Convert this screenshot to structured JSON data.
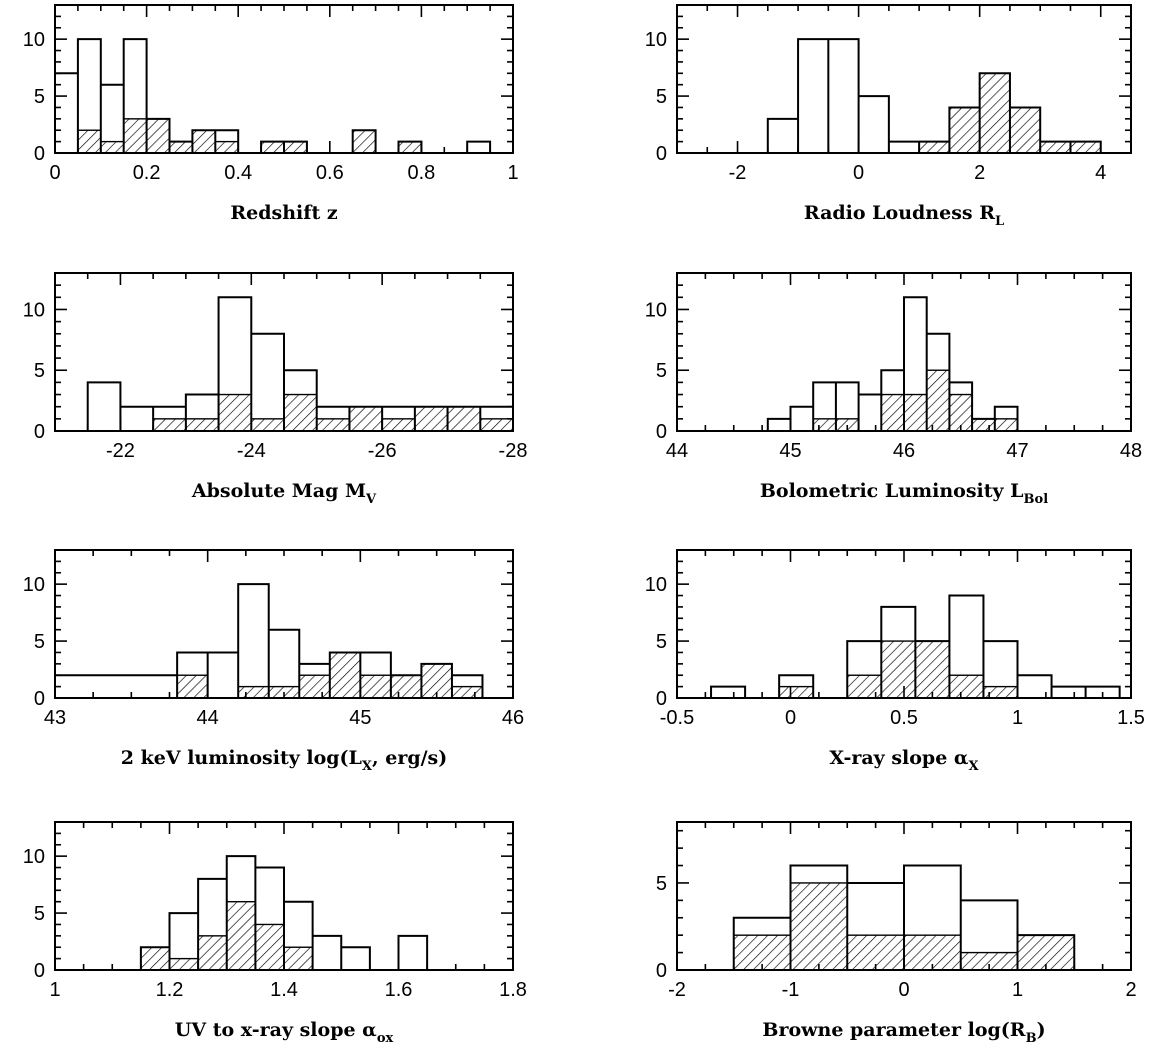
{
  "chart_data": [
    {
      "type": "bar",
      "xlabel": "Redshift z",
      "xlabel_main": "Redshift z",
      "xlabel_sub": "",
      "xlabel_tail": "",
      "xlim": [
        0,
        1
      ],
      "ylim": [
        0,
        13
      ],
      "xticks": [
        0,
        0.2,
        0.4,
        0.6,
        0.8,
        1
      ],
      "xtick_labels": [
        "0",
        "0.2",
        "0.4",
        "0.6",
        "0.8",
        "1"
      ],
      "yticks": [
        0,
        5,
        10
      ],
      "ytick_labels": [
        "0",
        "5",
        "10"
      ],
      "bin_edges": [
        0,
        0.05,
        0.1,
        0.15,
        0.2,
        0.25,
        0.3,
        0.35,
        0.4,
        0.45,
        0.5,
        0.55,
        0.6,
        0.65,
        0.7,
        0.75,
        0.8,
        0.85,
        0.9,
        0.95,
        1.0
      ],
      "series": [
        {
          "style": "open",
          "values": [
            7,
            10,
            6,
            10,
            3,
            1,
            2,
            2,
            0,
            1,
            1,
            0,
            0,
            2,
            0,
            1,
            0,
            0,
            1,
            0
          ]
        },
        {
          "style": "hatched",
          "values": [
            0,
            2,
            1,
            3,
            3,
            1,
            2,
            1,
            0,
            1,
            1,
            0,
            0,
            2,
            0,
            1,
            0,
            0,
            0,
            0
          ]
        }
      ]
    },
    {
      "type": "bar",
      "xlabel": "Radio Loudness R_L",
      "xlabel_main": "Radio Loudness R",
      "xlabel_sub": "L",
      "xlabel_tail": "",
      "xlim": [
        -3,
        4.5
      ],
      "ylim": [
        0,
        13
      ],
      "xticks": [
        -2,
        0,
        2,
        4
      ],
      "xtick_labels": [
        "-2",
        "0",
        "2",
        "4"
      ],
      "yticks": [
        0,
        5,
        10
      ],
      "ytick_labels": [
        "0",
        "5",
        "10"
      ],
      "bin_edges": [
        -1.5,
        -1.0,
        -0.5,
        0.0,
        0.5,
        1.0,
        1.5,
        2.0,
        2.5,
        3.0,
        3.5,
        4.0
      ],
      "series": [
        {
          "style": "open",
          "values": [
            3,
            10,
            10,
            5,
            1,
            1,
            4,
            7,
            4,
            1,
            1
          ]
        },
        {
          "style": "hatched",
          "values": [
            0,
            0,
            0,
            0,
            0,
            1,
            4,
            7,
            4,
            1,
            1
          ]
        }
      ]
    },
    {
      "type": "bar",
      "xlabel": "Absolute Mag M_V",
      "xlabel_main": "Absolute Mag M",
      "xlabel_sub": "V",
      "xlabel_tail": "",
      "xlim": [
        -21,
        -28
      ],
      "ylim": [
        0,
        13
      ],
      "xticks": [
        -22,
        -24,
        -26,
        -28
      ],
      "xtick_labels": [
        "-22",
        "-24",
        "-26",
        "-28"
      ],
      "yticks": [
        0,
        5,
        10
      ],
      "ytick_labels": [
        "0",
        "5",
        "10"
      ],
      "bin_edges": [
        -21.5,
        -22.0,
        -22.5,
        -23.0,
        -23.5,
        -24.0,
        -24.5,
        -25.0,
        -25.5,
        -26.0,
        -26.5,
        -27.0,
        -27.5,
        -28.0
      ],
      "series": [
        {
          "style": "open",
          "values": [
            4,
            2,
            2,
            3,
            11,
            8,
            5,
            2,
            2,
            2,
            2,
            2,
            2
          ]
        },
        {
          "style": "hatched",
          "values": [
            0,
            0,
            1,
            1,
            3,
            1,
            3,
            1,
            2,
            1,
            2,
            2,
            1
          ]
        }
      ]
    },
    {
      "type": "bar",
      "xlabel": "Bolometric Luminosity L_Bol",
      "xlabel_main": "Bolometric Luminosity L",
      "xlabel_sub": "Bol",
      "xlabel_tail": "",
      "xlim": [
        44,
        48
      ],
      "ylim": [
        0,
        13
      ],
      "xticks": [
        44,
        45,
        46,
        47,
        48
      ],
      "xtick_labels": [
        "44",
        "45",
        "46",
        "47",
        "48"
      ],
      "yticks": [
        0,
        5,
        10
      ],
      "ytick_labels": [
        "0",
        "5",
        "10"
      ],
      "bin_edges": [
        44.8,
        45.0,
        45.2,
        45.4,
        45.6,
        45.8,
        46.0,
        46.2,
        46.4,
        46.6,
        46.8,
        47.0
      ],
      "series": [
        {
          "style": "open",
          "values": [
            1,
            2,
            4,
            4,
            3,
            5,
            11,
            8,
            4,
            1,
            2
          ]
        },
        {
          "style": "hatched",
          "values": [
            0,
            0,
            1,
            1,
            0,
            3,
            3,
            5,
            3,
            1,
            1
          ]
        }
      ]
    },
    {
      "type": "bar",
      "xlabel": "2 keV luminosity log(L_X, erg/s)",
      "xlabel_main": "2 keV luminosity log(L",
      "xlabel_sub": "X",
      "xlabel_tail": ", erg/s)",
      "xlim": [
        43,
        46
      ],
      "ylim": [
        0,
        13
      ],
      "xticks": [
        43,
        44,
        45,
        46
      ],
      "xtick_labels": [
        "43",
        "44",
        "45",
        "46"
      ],
      "yticks": [
        0,
        5,
        10
      ],
      "ytick_labels": [
        "0",
        "5",
        "10"
      ],
      "bin_edges": [
        43.0,
        43.8,
        44.0,
        44.2,
        44.4,
        44.6,
        44.8,
        45.0,
        45.2,
        45.4,
        45.6,
        45.8
      ],
      "series": [
        {
          "style": "open",
          "values": [
            2,
            4,
            4,
            10,
            6,
            3,
            4,
            4,
            2,
            3,
            2
          ]
        },
        {
          "style": "hatched",
          "values": [
            0,
            2,
            0,
            1,
            1,
            2,
            4,
            2,
            2,
            3,
            1
          ]
        }
      ]
    },
    {
      "type": "bar",
      "xlabel": "X-ray slope α_X",
      "xlabel_main": "X-ray slope α",
      "xlabel_sub": "X",
      "xlabel_tail": "",
      "xlim": [
        -0.5,
        1.5
      ],
      "ylim": [
        0,
        13
      ],
      "xticks": [
        -0.5,
        0,
        0.5,
        1,
        1.5
      ],
      "xtick_labels": [
        "-0.5",
        "0",
        "0.5",
        "1",
        "1.5"
      ],
      "yticks": [
        0,
        5,
        10
      ],
      "ytick_labels": [
        "0",
        "5",
        "10"
      ],
      "bin_edges": [
        -0.35,
        -0.2,
        -0.05,
        0.1,
        0.25,
        0.4,
        0.55,
        0.7,
        0.85,
        1.0,
        1.15,
        1.3,
        1.45
      ],
      "series": [
        {
          "style": "open",
          "values": [
            1,
            0,
            2,
            0,
            5,
            8,
            5,
            9,
            5,
            2,
            1,
            1
          ]
        },
        {
          "style": "hatched",
          "values": [
            0,
            0,
            1,
            0,
            2,
            5,
            5,
            2,
            1,
            0,
            0,
            0
          ]
        }
      ]
    },
    {
      "type": "bar",
      "xlabel": "UV to x-ray slope α_ox",
      "xlabel_main": "UV to x-ray slope α",
      "xlabel_sub": "ox",
      "xlabel_tail": "",
      "xlim": [
        1,
        1.8
      ],
      "ylim": [
        0,
        13
      ],
      "xticks": [
        1,
        1.2,
        1.4,
        1.6,
        1.8
      ],
      "xtick_labels": [
        "1",
        "1.2",
        "1.4",
        "1.6",
        "1.8"
      ],
      "yticks": [
        0,
        5,
        10
      ],
      "ytick_labels": [
        "0",
        "5",
        "10"
      ],
      "bin_edges": [
        1.15,
        1.2,
        1.25,
        1.3,
        1.35,
        1.4,
        1.45,
        1.5,
        1.55,
        1.6,
        1.65
      ],
      "series": [
        {
          "style": "open",
          "values": [
            2,
            5,
            8,
            10,
            9,
            6,
            3,
            2,
            0,
            3
          ]
        },
        {
          "style": "hatched",
          "values": [
            2,
            1,
            3,
            6,
            4,
            2,
            0,
            0,
            0,
            0
          ]
        }
      ]
    },
    {
      "type": "bar",
      "xlabel": "Browne parameter log(R_B)",
      "xlabel_main": "Browne parameter log(R",
      "xlabel_sub": "B",
      "xlabel_tail": ")",
      "xlim": [
        -2,
        2
      ],
      "ylim": [
        0,
        8.5
      ],
      "xticks": [
        -2,
        -1,
        0,
        1,
        2
      ],
      "xtick_labels": [
        "-2",
        "-1",
        "0",
        "1",
        "2"
      ],
      "yticks": [
        0,
        5
      ],
      "ytick_labels": [
        "0",
        "5"
      ],
      "bin_edges": [
        -1.5,
        -1.0,
        -0.5,
        0.0,
        0.5,
        1.0,
        1.5
      ],
      "series": [
        {
          "style": "open",
          "values": [
            3,
            6,
            5,
            6,
            4,
            2
          ]
        },
        {
          "style": "hatched",
          "values": [
            2,
            5,
            2,
            2,
            1,
            2
          ]
        }
      ]
    }
  ]
}
